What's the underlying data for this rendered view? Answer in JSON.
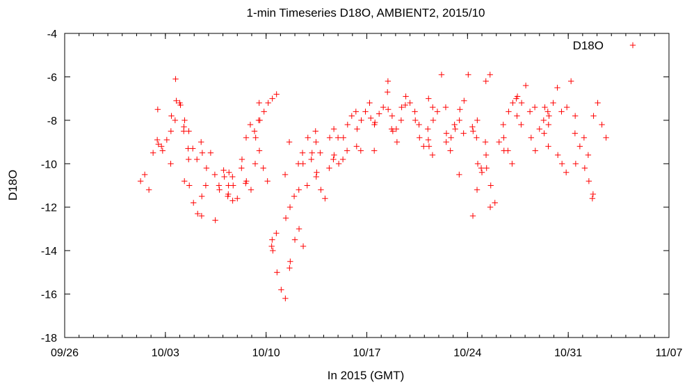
{
  "chart_data": {
    "type": "scatter",
    "title": "1-min Timeseries D18O, AMBIENT2, 2015/10",
    "xlabel": "In 2015 (GMT)",
    "ylabel": "D18O",
    "x_unit": "days",
    "xlim": [
      "2015-09-26",
      "2015-11-07"
    ],
    "ylim": [
      -18,
      -4
    ],
    "x_ticks": [
      {
        "label": "09/26",
        "value": "2015-09-26"
      },
      {
        "label": "10/03",
        "value": "2015-10-03"
      },
      {
        "label": "10/10",
        "value": "2015-10-10"
      },
      {
        "label": "10/17",
        "value": "2015-10-17"
      },
      {
        "label": "10/24",
        "value": "2015-10-24"
      },
      {
        "label": "10/31",
        "value": "2015-10-31"
      },
      {
        "label": "11/07",
        "value": "2015-11-07"
      }
    ],
    "y_ticks": [
      -4,
      -6,
      -8,
      -10,
      -12,
      -14,
      -16,
      -18
    ],
    "grid": false,
    "legend_position": "top-right",
    "marker": "plus",
    "series": [
      {
        "name": "D18O",
        "color": "#ff0000",
        "points": [
          [
            "2015-10-02",
            -10.8
          ],
          [
            "2015-10-02",
            -10.5
          ],
          [
            "2015-10-02",
            -11.2
          ],
          [
            "2015-10-02",
            -9.5
          ],
          [
            "2015-10-02",
            -8.9
          ],
          [
            "2015-10-02",
            -9.2
          ],
          [
            "2015-10-03",
            -9.1
          ],
          [
            "2015-10-03",
            -9.4
          ],
          [
            "2015-10-03",
            -8.9
          ],
          [
            "2015-10-03",
            -8.5
          ],
          [
            "2015-10-03",
            -8.0
          ],
          [
            "2015-10-03",
            -7.5
          ],
          [
            "2015-10-04",
            -7.1
          ],
          [
            "2015-10-04",
            -7.3
          ],
          [
            "2015-10-04",
            -8.0
          ],
          [
            "2015-10-04",
            -8.5
          ],
          [
            "2015-10-04",
            -7.8
          ],
          [
            "2015-10-04",
            -6.1
          ],
          [
            "2015-10-04",
            -7.2
          ],
          [
            "2015-10-04",
            -8.3
          ],
          [
            "2015-10-04",
            -9.3
          ],
          [
            "2015-10-04",
            -10.0
          ],
          [
            "2015-10-05",
            -11.0
          ],
          [
            "2015-10-05",
            -11.8
          ],
          [
            "2015-10-05",
            -12.3
          ],
          [
            "2015-10-05",
            -11.5
          ],
          [
            "2015-10-05",
            -10.8
          ],
          [
            "2015-10-05",
            -9.8
          ],
          [
            "2015-10-05",
            -9.3
          ],
          [
            "2015-10-05",
            -9.8
          ],
          [
            "2015-10-05",
            -9.0
          ],
          [
            "2015-10-05",
            -8.5
          ],
          [
            "2015-10-06",
            -9.5
          ],
          [
            "2015-10-06",
            -10.2
          ],
          [
            "2015-10-06",
            -9.5
          ],
          [
            "2015-10-06",
            -10.5
          ],
          [
            "2015-10-06",
            -11.0
          ],
          [
            "2015-10-06",
            -12.4
          ],
          [
            "2015-10-06",
            -11.0
          ],
          [
            "2015-10-07",
            -10.6
          ],
          [
            "2015-10-07",
            -11.0
          ],
          [
            "2015-10-07",
            -11.7
          ],
          [
            "2015-10-07",
            -12.6
          ],
          [
            "2015-10-07",
            -11.2
          ],
          [
            "2015-10-07",
            -10.3
          ],
          [
            "2015-10-07",
            -11.5
          ],
          [
            "2015-10-08",
            -10.8
          ],
          [
            "2015-10-08",
            -10.4
          ],
          [
            "2015-10-08",
            -11.0
          ],
          [
            "2015-10-08",
            -11.6
          ],
          [
            "2015-10-08",
            -10.2
          ],
          [
            "2015-10-08",
            -10.9
          ],
          [
            "2015-10-08",
            -11.4
          ],
          [
            "2015-10-08",
            -10.6
          ],
          [
            "2015-10-09",
            -11.2
          ],
          [
            "2015-10-09",
            -10.0
          ],
          [
            "2015-10-09",
            -9.4
          ],
          [
            "2015-10-09",
            -9.8
          ],
          [
            "2015-10-09",
            -8.8
          ],
          [
            "2015-10-09",
            -8.2
          ],
          [
            "2015-10-09",
            -8.5
          ],
          [
            "2015-10-09",
            -8.0
          ],
          [
            "2015-10-10",
            -8.8
          ],
          [
            "2015-10-10",
            -8.0
          ],
          [
            "2015-10-10",
            -7.6
          ],
          [
            "2015-10-10",
            -7.2
          ],
          [
            "2015-10-10",
            -7.0
          ],
          [
            "2015-10-10",
            -6.8
          ],
          [
            "2015-10-10",
            -7.2
          ],
          [
            "2015-10-10",
            -10.2
          ],
          [
            "2015-10-10",
            -10.8
          ],
          [
            "2015-10-10",
            -13.8
          ],
          [
            "2015-10-11",
            -14.5
          ],
          [
            "2015-10-11",
            -14.0
          ],
          [
            "2015-10-11",
            -15.0
          ],
          [
            "2015-10-11",
            -15.8
          ],
          [
            "2015-10-11",
            -16.2
          ],
          [
            "2015-10-11",
            -14.8
          ],
          [
            "2015-10-11",
            -13.5
          ],
          [
            "2015-10-11",
            -13.2
          ],
          [
            "2015-10-12",
            -13.5
          ],
          [
            "2015-10-12",
            -13.0
          ],
          [
            "2015-10-12",
            -13.8
          ],
          [
            "2015-10-12",
            -12.5
          ],
          [
            "2015-10-12",
            -12.0
          ],
          [
            "2015-10-12",
            -11.5
          ],
          [
            "2015-10-12",
            -10.0
          ],
          [
            "2015-10-12",
            -9.5
          ],
          [
            "2015-10-12",
            -10.5
          ],
          [
            "2015-10-12",
            -9.0
          ],
          [
            "2015-10-13",
            -8.8
          ],
          [
            "2015-10-13",
            -9.5
          ],
          [
            "2015-10-13",
            -10.6
          ],
          [
            "2015-10-13",
            -11.2
          ],
          [
            "2015-10-13",
            -10.0
          ],
          [
            "2015-10-13",
            -11.0
          ],
          [
            "2015-10-13",
            -9.8
          ],
          [
            "2015-10-13",
            -8.5
          ],
          [
            "2015-10-14",
            -9.6
          ],
          [
            "2015-10-14",
            -10.4
          ],
          [
            "2015-10-14",
            -11.2
          ],
          [
            "2015-10-14",
            -11.6
          ],
          [
            "2015-10-14",
            -10.2
          ],
          [
            "2015-10-14",
            -9.8
          ],
          [
            "2015-10-14",
            -9.0
          ],
          [
            "2015-10-14",
            -9.5
          ],
          [
            "2015-10-15",
            -10.0
          ],
          [
            "2015-10-15",
            -9.8
          ],
          [
            "2015-10-15",
            -9.4
          ],
          [
            "2015-10-15",
            -8.8
          ],
          [
            "2015-10-15",
            -8.4
          ],
          [
            "2015-10-15",
            -8.8
          ],
          [
            "2015-10-16",
            -9.2
          ],
          [
            "2015-10-16",
            -9.4
          ],
          [
            "2015-10-16",
            -8.8
          ],
          [
            "2015-10-16",
            -8.2
          ],
          [
            "2015-10-16",
            -7.8
          ],
          [
            "2015-10-16",
            -7.6
          ],
          [
            "2015-10-17",
            -8.2
          ],
          [
            "2015-10-17",
            -8.4
          ],
          [
            "2015-10-17",
            -8.0
          ],
          [
            "2015-10-17",
            -7.6
          ],
          [
            "2015-10-17",
            -7.2
          ],
          [
            "2015-10-18",
            -7.5
          ],
          [
            "2015-10-18",
            -7.9
          ],
          [
            "2015-10-18",
            -8.1
          ],
          [
            "2015-10-18",
            -7.7
          ],
          [
            "2015-10-18",
            -7.4
          ],
          [
            "2015-10-18",
            -6.7
          ],
          [
            "2015-10-18",
            -8.4
          ],
          [
            "2015-10-18",
            -9.4
          ],
          [
            "2015-10-19",
            -8.5
          ],
          [
            "2015-10-19",
            -9.0
          ],
          [
            "2015-10-19",
            -8.0
          ],
          [
            "2015-10-19",
            -7.3
          ],
          [
            "2015-10-19",
            -6.2
          ],
          [
            "2015-10-19",
            -7.8
          ],
          [
            "2015-10-19",
            -8.4
          ],
          [
            "2015-10-20",
            -7.6
          ],
          [
            "2015-10-20",
            -8.2
          ],
          [
            "2015-10-20",
            -7.4
          ],
          [
            "2015-10-20",
            -6.9
          ],
          [
            "2015-10-20",
            -7.2
          ],
          [
            "2015-10-21",
            -7.0
          ],
          [
            "2015-10-21",
            -7.4
          ],
          [
            "2015-10-21",
            -8.0
          ],
          [
            "2015-10-21",
            -8.8
          ],
          [
            "2015-10-21",
            -9.2
          ],
          [
            "2015-10-21",
            -8.4
          ],
          [
            "2015-10-22",
            -8.6
          ],
          [
            "2015-10-22",
            -9.2
          ],
          [
            "2015-10-22",
            -8.0
          ],
          [
            "2015-10-22",
            -7.6
          ],
          [
            "2015-10-22",
            -5.9
          ],
          [
            "2015-10-22",
            -7.4
          ],
          [
            "2015-10-22",
            -8.9
          ],
          [
            "2015-10-22",
            -9.6
          ],
          [
            "2015-10-23",
            -8.8
          ],
          [
            "2015-10-23",
            -8.4
          ],
          [
            "2015-10-23",
            -8.0
          ],
          [
            "2015-10-23",
            -8.6
          ],
          [
            "2015-10-23",
            -9.0
          ],
          [
            "2015-10-23",
            -9.4
          ],
          [
            "2015-10-23",
            -8.2
          ],
          [
            "2015-10-24",
            -8.5
          ],
          [
            "2015-10-24",
            -8.0
          ],
          [
            "2015-10-24",
            -7.5
          ],
          [
            "2015-10-24",
            -7.1
          ],
          [
            "2015-10-24",
            -5.9
          ],
          [
            "2015-10-24",
            -8.3
          ],
          [
            "2015-10-24",
            -8.8
          ],
          [
            "2015-10-24",
            -10.5
          ],
          [
            "2015-10-25",
            -10.0
          ],
          [
            "2015-10-25",
            -10.4
          ],
          [
            "2015-10-25",
            -9.6
          ],
          [
            "2015-10-25",
            -12.0
          ],
          [
            "2015-10-25",
            -12.4
          ],
          [
            "2015-10-25",
            -11.2
          ],
          [
            "2015-10-25",
            -10.2
          ],
          [
            "2015-10-25",
            -9.0
          ],
          [
            "2015-10-26",
            -9.4
          ],
          [
            "2015-10-26",
            -10.2
          ],
          [
            "2015-10-26",
            -11.0
          ],
          [
            "2015-10-26",
            -11.8
          ],
          [
            "2015-10-26",
            -9.0
          ],
          [
            "2015-10-26",
            -8.2
          ],
          [
            "2015-10-26",
            -6.2
          ],
          [
            "2015-10-26",
            -5.9
          ],
          [
            "2015-10-27",
            -7.6
          ],
          [
            "2015-10-27",
            -7.2
          ],
          [
            "2015-10-27",
            -7.8
          ],
          [
            "2015-10-27",
            -8.2
          ],
          [
            "2015-10-27",
            -8.8
          ],
          [
            "2015-10-27",
            -9.4
          ],
          [
            "2015-10-27",
            -10.0
          ],
          [
            "2015-10-27",
            -7.0
          ],
          [
            "2015-10-28",
            -7.4
          ],
          [
            "2015-10-28",
            -6.9
          ],
          [
            "2015-10-28",
            -7.2
          ],
          [
            "2015-10-28",
            -6.4
          ],
          [
            "2015-10-28",
            -7.6
          ],
          [
            "2015-10-29",
            -8.2
          ],
          [
            "2015-10-29",
            -8.8
          ],
          [
            "2015-10-29",
            -9.4
          ],
          [
            "2015-10-29",
            -8.4
          ],
          [
            "2015-10-29",
            -8.0
          ],
          [
            "2015-10-29",
            -7.6
          ],
          [
            "2015-10-30",
            -7.4
          ],
          [
            "2015-10-30",
            -7.8
          ],
          [
            "2015-10-30",
            -7.2
          ],
          [
            "2015-10-30",
            -6.5
          ],
          [
            "2015-10-30",
            -7.6
          ],
          [
            "2015-10-30",
            -8.6
          ],
          [
            "2015-10-30",
            -9.2
          ],
          [
            "2015-10-31",
            -7.4
          ],
          [
            "2015-10-31",
            -6.2
          ],
          [
            "2015-10-31",
            -7.8
          ],
          [
            "2015-10-31",
            -9.6
          ],
          [
            "2015-10-31",
            -10.0
          ],
          [
            "2015-10-31",
            -10.4
          ],
          [
            "2015-11-01",
            -10.2
          ],
          [
            "2015-11-01",
            -10.8
          ],
          [
            "2015-11-01",
            -11.4
          ],
          [
            "2015-11-01",
            -10.0
          ],
          [
            "2015-11-01",
            -9.2
          ],
          [
            "2015-11-01",
            -8.8
          ],
          [
            "2015-11-01",
            -9.6
          ],
          [
            "2015-11-01",
            -11.6
          ],
          [
            "2015-11-01",
            -8.6
          ],
          [
            "2015-11-02",
            -7.8
          ],
          [
            "2015-11-02",
            -7.2
          ],
          [
            "2015-11-02",
            -8.2
          ],
          [
            "2015-11-02",
            -8.8
          ]
        ]
      }
    ]
  }
}
